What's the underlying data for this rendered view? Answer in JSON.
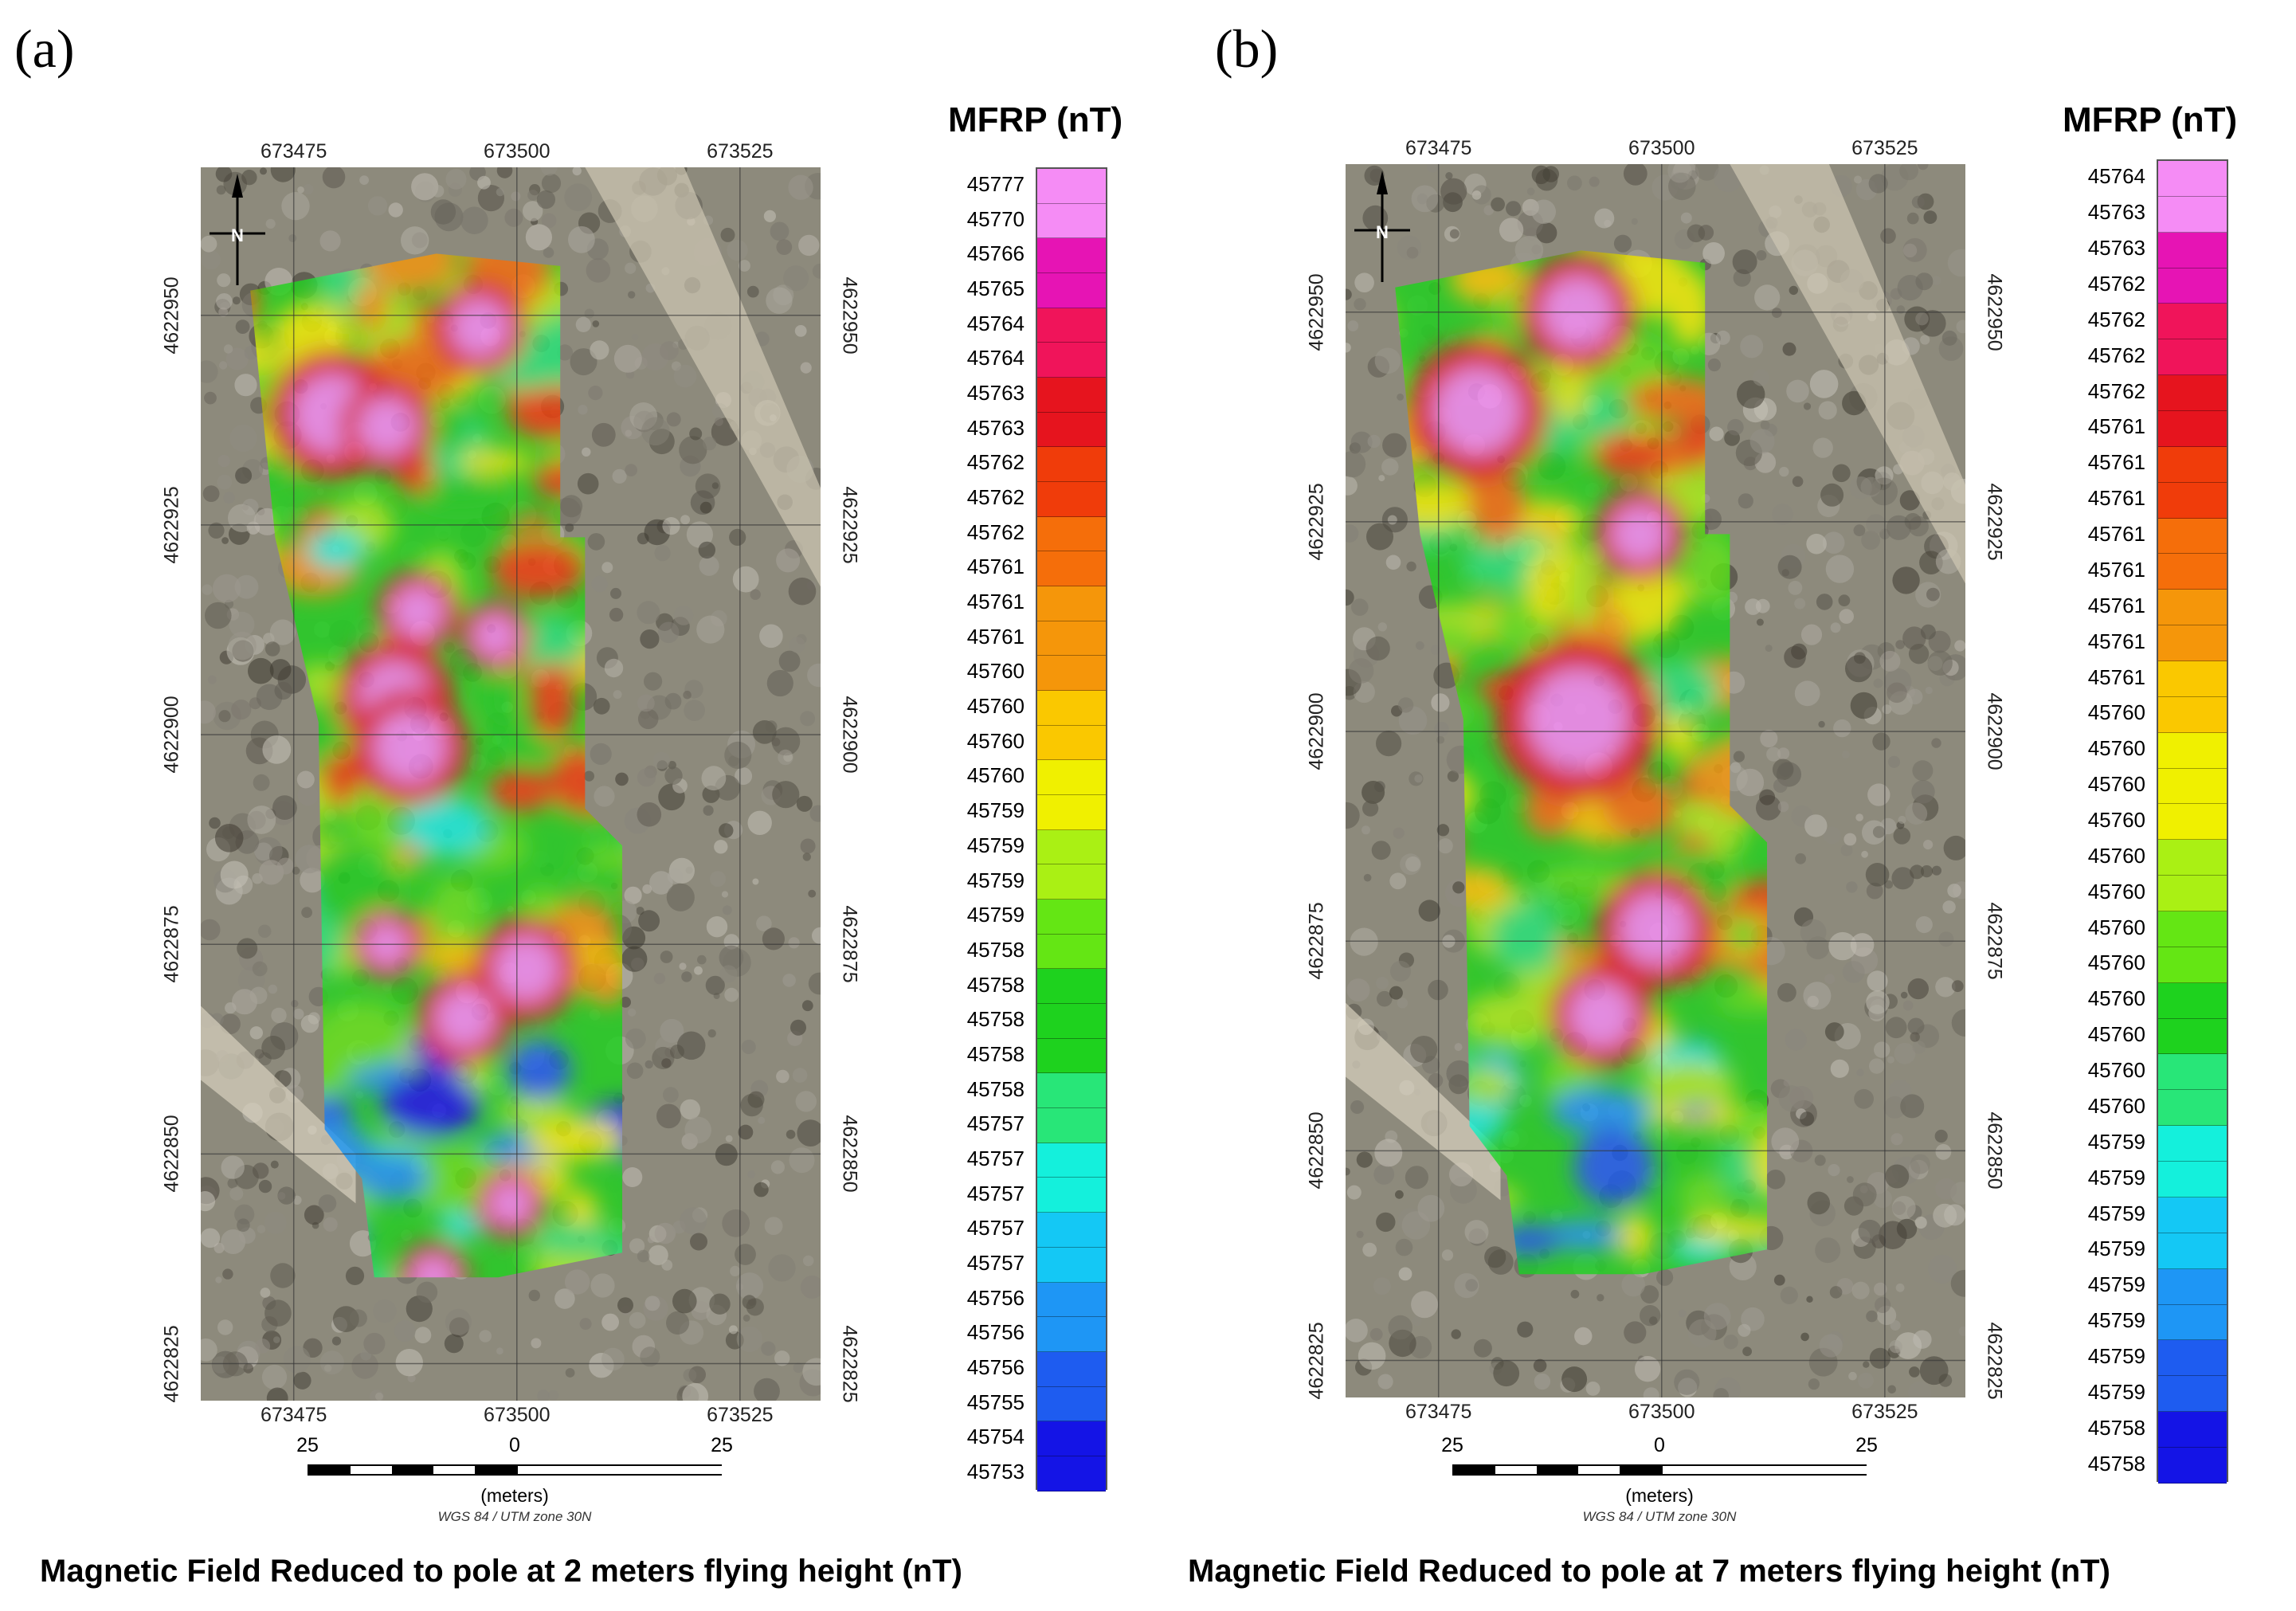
{
  "panels": [
    {
      "id": "a",
      "letter": "(a)",
      "caption": "Magnetic Field Reduced to pole at 2 meters flying height (nT)",
      "legend_title": "MFRP (nT)",
      "legend_values": [
        "45777",
        "45770",
        "45766",
        "45765",
        "45764",
        "45764",
        "45763",
        "45763",
        "45762",
        "45762",
        "45762",
        "45761",
        "45761",
        "45761",
        "45760",
        "45760",
        "45760",
        "45760",
        "45759",
        "45759",
        "45759",
        "45759",
        "45758",
        "45758",
        "45758",
        "45758",
        "45758",
        "45757",
        "45757",
        "45757",
        "45757",
        "45757",
        "45756",
        "45756",
        "45756",
        "45755",
        "45754",
        "45753"
      ],
      "x_ticks_top": [
        "673475",
        "673500",
        "673525"
      ],
      "x_ticks_bottom": [
        "673475",
        "673500",
        "673525"
      ],
      "y_ticks": [
        "4622950",
        "4622925",
        "4622900",
        "4622875",
        "4622850",
        "4622825"
      ],
      "scale": {
        "left": "25",
        "mid": "0",
        "right": "25",
        "units": "(meters)",
        "crs": "WGS 84 / UTM zone 30N"
      },
      "hotspots": [
        {
          "x": 0.17,
          "y": 0.2,
          "r": 0.055
        },
        {
          "x": 0.24,
          "y": 0.21,
          "r": 0.04
        },
        {
          "x": 0.28,
          "y": 0.36,
          "r": 0.035
        },
        {
          "x": 0.38,
          "y": 0.38,
          "r": 0.03
        },
        {
          "x": 0.25,
          "y": 0.43,
          "r": 0.05
        },
        {
          "x": 0.27,
          "y": 0.47,
          "r": 0.05
        },
        {
          "x": 0.42,
          "y": 0.65,
          "r": 0.045
        },
        {
          "x": 0.24,
          "y": 0.63,
          "r": 0.03
        },
        {
          "x": 0.34,
          "y": 0.69,
          "r": 0.04
        },
        {
          "x": 0.3,
          "y": 0.9,
          "r": 0.03
        },
        {
          "x": 0.4,
          "y": 0.84,
          "r": 0.03
        },
        {
          "x": 0.36,
          "y": 0.13,
          "r": 0.04
        }
      ]
    },
    {
      "id": "b",
      "letter": "(b)",
      "caption": "Magnetic Field Reduced to pole at 7 meters flying height (nT)",
      "legend_title": "MFRP (nT)",
      "legend_values": [
        "45764",
        "45763",
        "45763",
        "45762",
        "45762",
        "45762",
        "45762",
        "45761",
        "45761",
        "45761",
        "45761",
        "45761",
        "45761",
        "45761",
        "45761",
        "45760",
        "45760",
        "45760",
        "45760",
        "45760",
        "45760",
        "45760",
        "45760",
        "45760",
        "45760",
        "45760",
        "45760",
        "45759",
        "45759",
        "45759",
        "45759",
        "45759",
        "45759",
        "45759",
        "45759",
        "45758",
        "45758"
      ],
      "x_ticks_top": [
        "673475",
        "673500",
        "673525"
      ],
      "x_ticks_bottom": [
        "673475",
        "673500",
        "673525"
      ],
      "y_ticks": [
        "4622950",
        "4622925",
        "4622900",
        "4622875",
        "4622850",
        "4622825"
      ],
      "scale": {
        "left": "25",
        "mid": "0",
        "right": "25",
        "units": "(meters)",
        "crs": "WGS 84 / UTM zone 30N"
      },
      "hotspots": [
        {
          "x": 0.17,
          "y": 0.2,
          "r": 0.06
        },
        {
          "x": 0.3,
          "y": 0.45,
          "r": 0.07
        },
        {
          "x": 0.4,
          "y": 0.62,
          "r": 0.05
        },
        {
          "x": 0.33,
          "y": 0.69,
          "r": 0.045
        },
        {
          "x": 0.38,
          "y": 0.3,
          "r": 0.04
        },
        {
          "x": 0.3,
          "y": 0.12,
          "r": 0.05
        }
      ]
    }
  ],
  "colors": {
    "ramp": [
      "#1414e6",
      "#1e5cf0",
      "#1e96f5",
      "#14c8f5",
      "#14f0dc",
      "#28e678",
      "#1ed21e",
      "#64e614",
      "#aaf014",
      "#f0f000",
      "#fac800",
      "#f5960a",
      "#f56e0a",
      "#f03c0a",
      "#e6141e",
      "#f0145a",
      "#e614b4",
      "#f58cf5"
    ],
    "satellite_base": "#8d8a7c"
  }
}
